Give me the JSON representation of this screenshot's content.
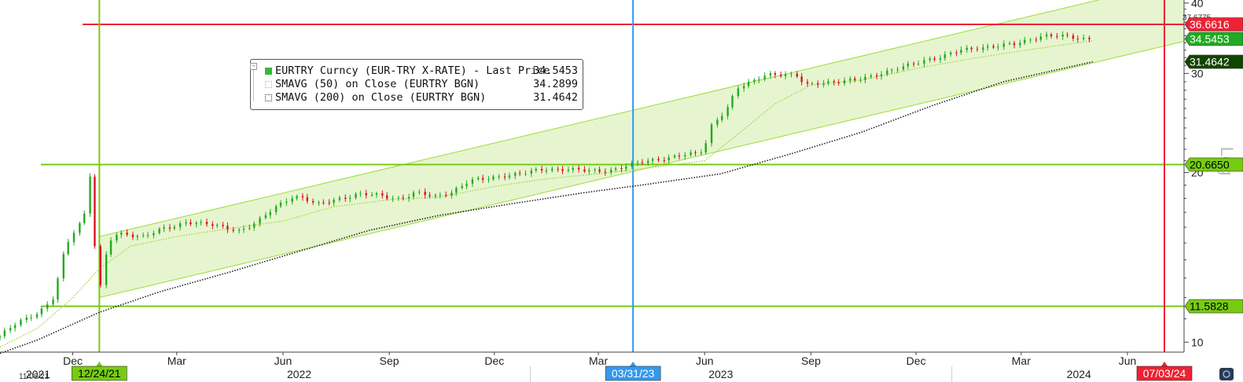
{
  "chart_data": {
    "type": "candlestick",
    "scale": "log",
    "ylim": [
      9.6,
      40.5
    ],
    "xlim": [
      "2021-09-29",
      "2024-07-20"
    ],
    "y_ticks": [
      10,
      20,
      30,
      40
    ],
    "x_ticks": [
      {
        "label": "Dec",
        "date": "2021-12-01"
      },
      {
        "label": "Mar",
        "date": "2022-03-01"
      },
      {
        "label": "Jun",
        "date": "2022-06-01"
      },
      {
        "label": "Sep",
        "date": "2022-09-01"
      },
      {
        "label": "Dec",
        "date": "2022-12-01"
      },
      {
        "label": "Mar",
        "date": "2023-03-01"
      },
      {
        "label": "Jun",
        "date": "2023-06-01"
      },
      {
        "label": "Sep",
        "date": "2023-09-01"
      },
      {
        "label": "Dec",
        "date": "2023-12-01"
      },
      {
        "label": "Mar",
        "date": "2024-03-01"
      },
      {
        "label": "Jun",
        "date": "2024-06-01"
      }
    ],
    "year_labels": [
      {
        "label": "2021",
        "date": "2021-11-01"
      },
      {
        "label": "2022",
        "date": "2022-06-15"
      },
      {
        "label": "2023",
        "date": "2023-06-15"
      },
      {
        "label": "2024",
        "date": "2024-04-20"
      }
    ],
    "side_label": "Log",
    "series": [
      {
        "name": "EURTRY Curncy (EUR-TRY X-RATE) - Last Price",
        "last": "34.5453",
        "color": "#22aa22",
        "points": [
          [
            "2021-09-29",
            10.2
          ],
          [
            "2021-10-15",
            10.9
          ],
          [
            "2021-10-29",
            11.2
          ],
          [
            "2021-11-08",
            11.5
          ],
          [
            "2021-11-15",
            12.0
          ],
          [
            "2021-11-23",
            14.2
          ],
          [
            "2021-11-30",
            15.5
          ],
          [
            "2021-12-07",
            16.3
          ],
          [
            "2021-12-14",
            17.2
          ],
          [
            "2021-12-17",
            20.8
          ],
          [
            "2021-12-20",
            15.5
          ],
          [
            "2021-12-23",
            13.2
          ],
          [
            "2021-12-24",
            12.0
          ],
          [
            "2021-12-29",
            14.0
          ],
          [
            "2022-01-05",
            15.5
          ],
          [
            "2022-01-15",
            15.6
          ],
          [
            "2022-02-01",
            15.4
          ],
          [
            "2022-02-15",
            15.8
          ],
          [
            "2022-03-01",
            16.1
          ],
          [
            "2022-03-10",
            16.4
          ],
          [
            "2022-03-25",
            16.2
          ],
          [
            "2022-04-10",
            16.0
          ],
          [
            "2022-04-25",
            15.8
          ],
          [
            "2022-05-10",
            16.3
          ],
          [
            "2022-05-25",
            17.3
          ],
          [
            "2022-06-10",
            18.2
          ],
          [
            "2022-06-20",
            18.0
          ],
          [
            "2022-07-01",
            17.5
          ],
          [
            "2022-07-20",
            18.0
          ],
          [
            "2022-08-05",
            18.3
          ],
          [
            "2022-08-25",
            18.2
          ],
          [
            "2022-09-10",
            18.0
          ],
          [
            "2022-09-25",
            18.4
          ],
          [
            "2022-10-10",
            18.1
          ],
          [
            "2022-10-25",
            18.5
          ],
          [
            "2022-11-10",
            19.3
          ],
          [
            "2022-11-25",
            19.5
          ],
          [
            "2022-12-10",
            19.8
          ],
          [
            "2022-12-25",
            19.9
          ],
          [
            "2023-01-15",
            20.3
          ],
          [
            "2023-02-01",
            20.3
          ],
          [
            "2023-02-20",
            20.1
          ],
          [
            "2023-03-10",
            20.2
          ],
          [
            "2023-03-25",
            20.5
          ],
          [
            "2023-04-10",
            20.9
          ],
          [
            "2023-04-25",
            21.2
          ],
          [
            "2023-05-10",
            21.4
          ],
          [
            "2023-05-25",
            21.6
          ],
          [
            "2023-06-01",
            22.0
          ],
          [
            "2023-06-08",
            24.5
          ],
          [
            "2023-06-20",
            25.8
          ],
          [
            "2023-06-30",
            28.2
          ],
          [
            "2023-07-10",
            28.8
          ],
          [
            "2023-07-25",
            30.0
          ],
          [
            "2023-08-10",
            29.8
          ],
          [
            "2023-08-20",
            29.6
          ],
          [
            "2023-08-28",
            28.6
          ],
          [
            "2023-09-10",
            29.0
          ],
          [
            "2023-09-25",
            28.9
          ],
          [
            "2023-10-10",
            29.2
          ],
          [
            "2023-10-25",
            29.8
          ],
          [
            "2023-11-10",
            30.3
          ],
          [
            "2023-11-25",
            31.0
          ],
          [
            "2023-12-10",
            31.8
          ],
          [
            "2023-12-25",
            32.1
          ],
          [
            "2024-01-10",
            33.0
          ],
          [
            "2024-01-25",
            33.4
          ],
          [
            "2024-02-10",
            33.5
          ],
          [
            "2024-02-25",
            33.8
          ],
          [
            "2024-03-10",
            34.6
          ],
          [
            "2024-03-20",
            35.0
          ],
          [
            "2024-04-05",
            34.9
          ],
          [
            "2024-04-20",
            34.7
          ],
          [
            "2024-05-02",
            34.55
          ]
        ]
      },
      {
        "name": "SMAVG (50)  on Close (EURTRY BGN)",
        "last": "34.2899",
        "color": "#a6d64a",
        "style": "dotted",
        "points": [
          [
            "2021-09-29",
            9.8
          ],
          [
            "2021-11-01",
            10.6
          ],
          [
            "2021-12-01",
            12.0
          ],
          [
            "2021-12-24",
            13.5
          ],
          [
            "2022-01-20",
            14.8
          ],
          [
            "2022-03-01",
            15.4
          ],
          [
            "2022-04-15",
            15.9
          ],
          [
            "2022-06-01",
            16.4
          ],
          [
            "2022-07-15",
            17.4
          ],
          [
            "2022-09-01",
            17.9
          ],
          [
            "2022-10-15",
            18.1
          ],
          [
            "2022-12-01",
            18.9
          ],
          [
            "2023-01-15",
            19.5
          ],
          [
            "2023-03-01",
            19.9
          ],
          [
            "2023-04-15",
            20.4
          ],
          [
            "2023-06-01",
            21.0
          ],
          [
            "2023-07-01",
            23.5
          ],
          [
            "2023-08-01",
            26.5
          ],
          [
            "2023-09-01",
            28.6
          ],
          [
            "2023-10-15",
            29.2
          ],
          [
            "2023-12-01",
            30.6
          ],
          [
            "2024-01-15",
            31.8
          ],
          [
            "2024-03-01",
            32.9
          ],
          [
            "2024-05-02",
            34.29
          ]
        ]
      },
      {
        "name": "SMAVG (200)  on Close (EURTRY BGN)",
        "last": "31.4642",
        "color": "#222222",
        "style": "dotted",
        "points": [
          [
            "2021-09-29",
            9.55
          ],
          [
            "2021-11-01",
            10.1
          ],
          [
            "2021-12-24",
            11.3
          ],
          [
            "2022-02-15",
            12.3
          ],
          [
            "2022-04-15",
            13.3
          ],
          [
            "2022-06-15",
            14.5
          ],
          [
            "2022-08-15",
            15.8
          ],
          [
            "2022-10-15",
            16.8
          ],
          [
            "2022-12-15",
            17.6
          ],
          [
            "2023-02-15",
            18.4
          ],
          [
            "2023-04-15",
            19.1
          ],
          [
            "2023-06-15",
            19.9
          ],
          [
            "2023-08-15",
            21.6
          ],
          [
            "2023-10-15",
            23.6
          ],
          [
            "2023-12-15",
            26.3
          ],
          [
            "2024-02-15",
            29.0
          ],
          [
            "2024-05-02",
            31.46
          ]
        ]
      }
    ],
    "channel": {
      "upper": [
        [
          "2021-12-24",
          15.4
        ],
        [
          "2024-07-20",
          44.0
        ]
      ],
      "lower": [
        [
          "2021-12-24",
          12.0
        ],
        [
          "2024-07-20",
          34.2
        ]
      ],
      "fill": "#e6f5cf",
      "stroke": "#99dd33"
    },
    "horizontal_lines": [
      {
        "value": 36.6616,
        "label": "36.6616",
        "color": "#ee2233"
      },
      {
        "value": 20.665,
        "label": "20.6650",
        "color": "#77cc11"
      },
      {
        "value": 11.5828,
        "label": "11.5828",
        "color": "#77cc11"
      }
    ],
    "vertical_lines": [
      {
        "date": "2021-12-24",
        "label": "12/24/21",
        "color": "#77cc11"
      },
      {
        "date": "2023-03-31",
        "label": "03/31/23",
        "color": "#3399ee"
      },
      {
        "date": "2024-07-03",
        "label": "07/03/24",
        "color": "#ee2233"
      }
    ],
    "right_labels": [
      {
        "value": 37.6775,
        "label": "37.6775",
        "bg": "#ffffff",
        "fg": "#333333",
        "small": true
      },
      {
        "value": 36.6616,
        "label": "36.6616",
        "bg": "#ee2233",
        "fg": "#ffffff"
      },
      {
        "value": 34.5453,
        "label": "34.5453",
        "bg": "#22aa22",
        "fg": "#ffffff"
      },
      {
        "value": 31.4642,
        "label": "31.4642",
        "bg": "#114400",
        "fg": "#ffffff"
      },
      {
        "value": 20.665,
        "label": "20.6650",
        "bg": "#77cc11",
        "fg": "#000000"
      },
      {
        "value": 11.5828,
        "label": "11.5828",
        "bg": "#77cc11",
        "fg": "#000000"
      }
    ],
    "bottom_left_date": "11/08/21"
  }
}
